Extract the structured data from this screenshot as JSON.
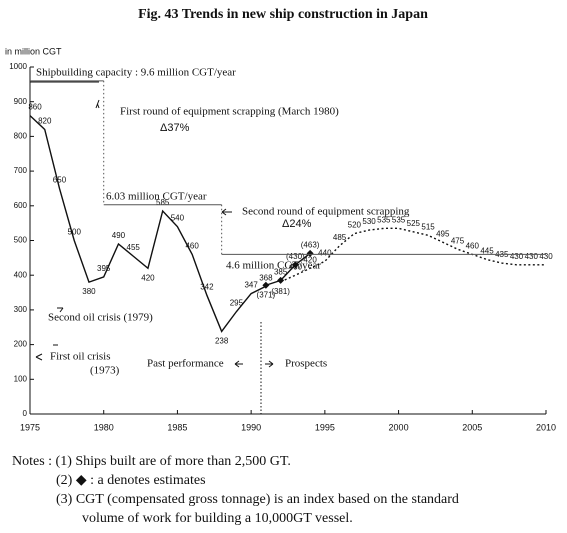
{
  "chart_data": {
    "type": "line",
    "title": "Fig. 43 Trends in new ship construction in Japan",
    "y_label": "in million CGT",
    "xlim": [
      1975,
      2010
    ],
    "xticks": [
      1975,
      1980,
      1985,
      1990,
      1995,
      2000,
      2005,
      2010
    ],
    "ylim": [
      0,
      1000
    ],
    "yticks": [
      0,
      100,
      200,
      300,
      400,
      500,
      600,
      700,
      800,
      900,
      1000
    ],
    "series": [
      {
        "name": "Past performance",
        "color": "#111111",
        "style": "solid",
        "marker": "none",
        "data_labels": true,
        "x": [
          1975,
          1976,
          1977,
          1978,
          1979,
          1980,
          1981,
          1982,
          1983,
          1984,
          1985,
          1986,
          1987,
          1988,
          1989,
          1990,
          1991
        ],
        "values": [
          860,
          820,
          650,
          500,
          380,
          395,
          490,
          455,
          420,
          585,
          540,
          460,
          342,
          238,
          295,
          347,
          368
        ]
      },
      {
        "name": "Estimates",
        "color": "#111111",
        "style": "solid",
        "marker": "diamond",
        "data_labels": true,
        "x": [
          1991,
          1992,
          1993,
          1994
        ],
        "values": [
          371,
          385,
          430,
          463
        ],
        "value_labels": [
          "(371)",
          "385",
          "(430)",
          "(463)"
        ]
      },
      {
        "name": "Prospects",
        "color": "#111111",
        "style": "dotted",
        "marker": "none",
        "data_labels": true,
        "x": [
          1992,
          1993,
          1994,
          1995,
          1996,
          1997,
          1998,
          1999,
          2000,
          2001,
          2002,
          2003,
          2004,
          2005,
          2006,
          2007,
          2008,
          2009,
          2010
        ],
        "values": [
          381,
          400,
          420,
          440,
          485,
          520,
          530,
          535,
          535,
          525,
          515,
          495,
          475,
          460,
          445,
          435,
          430,
          430,
          430
        ],
        "value_labels": [
          "(381)",
          "400",
          "420",
          "440",
          "485",
          "520",
          "530",
          "535",
          "535",
          "525",
          "515",
          "495",
          "475",
          "460",
          "445",
          "435",
          "430",
          "430",
          "430"
        ]
      },
      {
        "name": "Shipbuilding capacity",
        "color": "#555555",
        "style": "capacity",
        "marker": "none",
        "data_labels": false,
        "x": [
          1975,
          1980,
          1980,
          1988,
          1988,
          2010
        ],
        "values": [
          960,
          960,
          603,
          603,
          460,
          460
        ]
      }
    ],
    "annotations": [
      "Shipbuilding capacity : 9.6 million CGT/year",
      "First round of equipment scrapping (March 1980)",
      "Δ37%",
      "6.03 million CGT/year",
      "Second round of equipment scrapping",
      "Δ24%",
      "4.6 million CGT/year",
      "Second oil crisis (1979)",
      "First oil crisis",
      "(1973)",
      "Past performance",
      "Prospects"
    ]
  },
  "notes": [
    "Notes : (1) Ships built are of more than 2,500 GT.",
    "(2) ◆ : a denotes estimates",
    "(3) CGT (compensated gross tonnage) is an index based on the standard",
    "volume of work for building a 10,000GT vessel."
  ]
}
